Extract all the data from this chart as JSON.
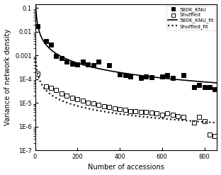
{
  "title": "",
  "xlabel": "Number of accessions",
  "ylabel": "Variance of network density",
  "xlim": [
    0,
    860
  ],
  "knu_x": [
    10,
    50,
    75,
    100,
    125,
    150,
    175,
    200,
    225,
    250,
    275,
    300,
    350,
    400,
    425,
    450,
    500,
    525,
    550,
    600,
    625,
    650,
    700,
    750,
    775,
    800,
    825,
    850
  ],
  "knu_y": [
    0.017,
    0.004,
    0.0028,
    0.00095,
    0.00075,
    0.00055,
    0.00045,
    0.00042,
    0.00055,
    0.00042,
    0.00038,
    0.00055,
    0.00038,
    0.00016,
    0.00015,
    0.00013,
    0.00011,
    0.00013,
    0.00012,
    0.00013,
    0.00015,
    0.00011,
    0.00015,
    4.5e-05,
    5.5e-05,
    4.5e-05,
    4.5e-05,
    3.8e-05
  ],
  "shuffled_x": [
    10,
    50,
    75,
    100,
    125,
    150,
    175,
    200,
    225,
    250,
    275,
    300,
    325,
    350,
    375,
    400,
    425,
    450,
    475,
    500,
    525,
    550,
    575,
    600,
    625,
    650,
    675,
    700,
    750,
    775,
    800,
    825,
    850
  ],
  "shuffled_y": [
    0.00017,
    5e-05,
    4.2e-05,
    3.5e-05,
    2.5e-05,
    2e-05,
    1.6e-05,
    1.4e-05,
    1.25e-05,
    1e-05,
    9.5e-06,
    8e-06,
    7e-06,
    6.5e-06,
    6e-06,
    5.5e-06,
    5e-06,
    4.5e-06,
    4.5e-06,
    4.2e-06,
    4e-06,
    3.8e-06,
    3.5e-06,
    3.2e-06,
    3.5e-06,
    3.2e-06,
    2.8e-06,
    2.5e-06,
    1.5e-06,
    2.5e-06,
    1.7e-06,
    4.5e-07,
    4e-07
  ],
  "knu_fit_a": 0.52,
  "knu_fit_b": -1.32,
  "shuffled_fit_a": 0.0028,
  "shuffled_fit_b": -1.12,
  "legend_labels": [
    "580K_KNU",
    "Shuffled",
    "580K_KNU_fit",
    "Shuffled_fit"
  ],
  "ytick_labels": [
    "0.1",
    "0.01",
    "0.001",
    "1E-4",
    "1E-5",
    "1E-6",
    "1E-7"
  ],
  "ytick_values": [
    0.1,
    0.01,
    0.001,
    0.0001,
    1e-05,
    1e-06,
    1e-07
  ],
  "marker_size": 4,
  "line_width": 1.2,
  "line_color": "black",
  "marker_color_knu": "black",
  "marker_color_shuffled": "white",
  "marker_edge_color": "black",
  "marker_edge_width": 0.7
}
